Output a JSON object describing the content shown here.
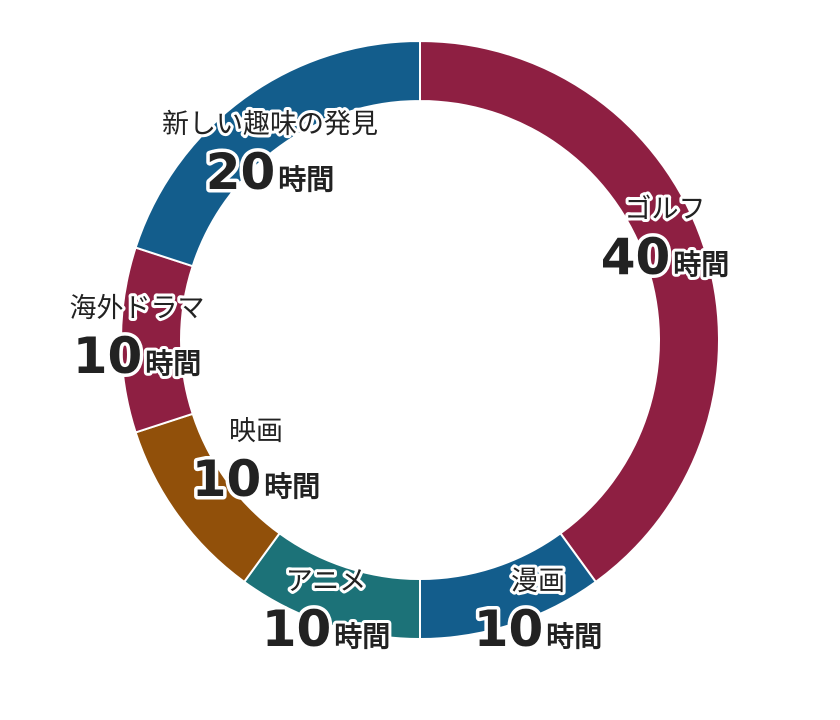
{
  "chart_data": {
    "type": "pie",
    "style": "donut",
    "unit": "時間",
    "slices": [
      {
        "label": "ゴルフ",
        "value": 40,
        "color": "#8e1f42"
      },
      {
        "label": "漫画",
        "value": 10,
        "color": "#135d8c"
      },
      {
        "label": "アニメ",
        "value": 10,
        "color": "#1c7278"
      },
      {
        "label": "映画",
        "value": 10,
        "color": "#91500a"
      },
      {
        "label": "海外ドラマ",
        "value": 10,
        "color": "#8e1f42"
      },
      {
        "label": "新しい趣味の発見",
        "value": 20,
        "color": "#135d8c"
      }
    ]
  }
}
